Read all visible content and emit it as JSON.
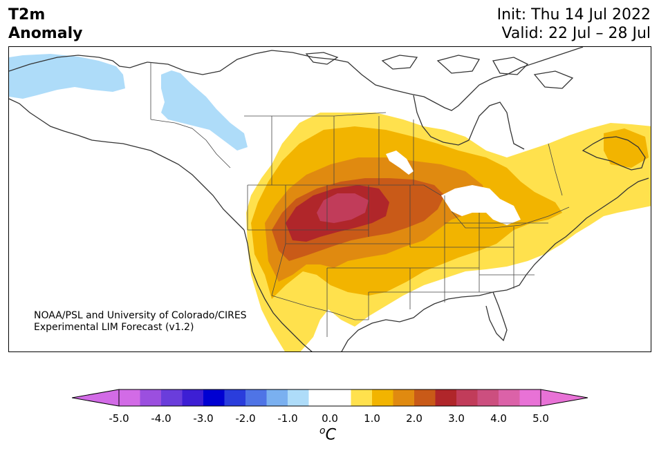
{
  "title": {
    "line1": "T2m",
    "line2": "Anomaly"
  },
  "dates": {
    "init": "Init: Thu 14 Jul 2022",
    "valid": "Valid: 22 Jul – 28 Jul"
  },
  "credit": {
    "line1": "NOAA/PSL and University of Colorado/CIRES",
    "line2": "Experimental LIM Forecast (v1.2)"
  },
  "colorbar": {
    "unit_base": "C",
    "unit_prefix": "o",
    "ticks": [
      "-5.0",
      "-4.0",
      "-3.0",
      "-2.0",
      "-1.0",
      "0.0",
      "1.0",
      "2.0",
      "3.0",
      "4.0",
      "5.0"
    ],
    "colors": [
      "#d26be6",
      "#9b4fdf",
      "#6a3ddb",
      "#3d1fd4",
      "#0000d2",
      "#2a3ddc",
      "#4f74e6",
      "#7ab0f0",
      "#aedcf9",
      "#ffffff",
      "#ffffff",
      "#ffe14d",
      "#f2b400",
      "#e08a10",
      "#c95a18",
      "#b0262a",
      "#c13c5a",
      "#cc4f7f",
      "#db62a8",
      "#e872d6"
    ],
    "under_color": "#d26be6",
    "over_color": "#e872d6"
  },
  "map_colors": {
    "c05": "#ffe14d",
    "c10": "#f2b400",
    "c15": "#e08a10",
    "c20": "#c95a18",
    "c25": "#b0262a",
    "c30": "#c13c5a",
    "cold": "#aedcf9",
    "coast": "#333333",
    "border": "#444444"
  }
}
